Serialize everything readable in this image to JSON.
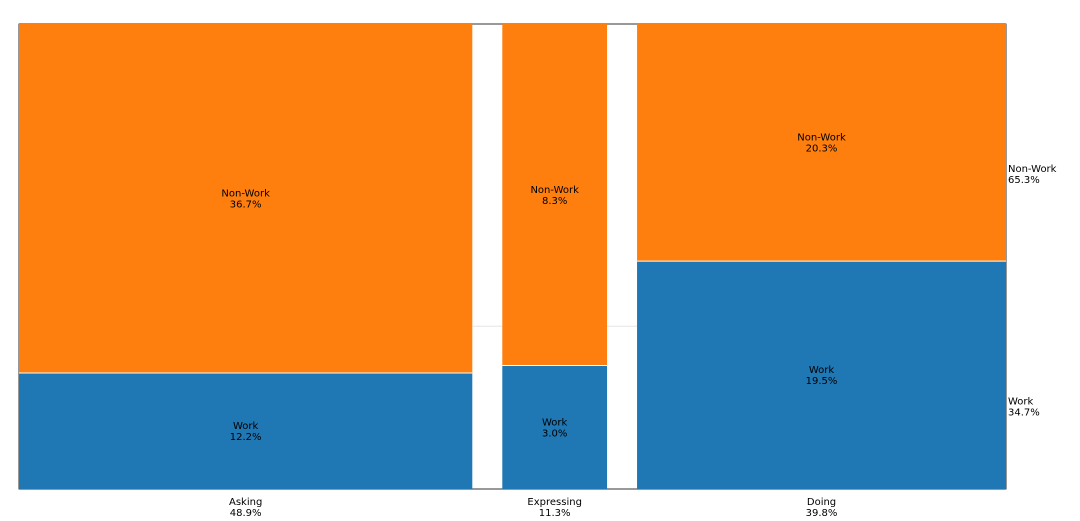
{
  "chart_data": {
    "type": "mosaic",
    "categories": [
      {
        "name": "Asking",
        "total_label": "48.9%",
        "share": 48.9,
        "segments": [
          {
            "name": "Work",
            "label": "12.2%",
            "value": 12.2
          },
          {
            "name": "Non-Work",
            "label": "36.7%",
            "value": 36.7
          }
        ]
      },
      {
        "name": "Expressing",
        "total_label": "11.3%",
        "share": 11.3,
        "segments": [
          {
            "name": "Work",
            "label": "3.0%",
            "value": 3.0
          },
          {
            "name": "Non-Work",
            "label": "8.3%",
            "value": 8.3
          }
        ]
      },
      {
        "name": "Doing",
        "total_label": "39.8%",
        "share": 39.8,
        "segments": [
          {
            "name": "Work",
            "label": "19.5%",
            "value": 19.5
          },
          {
            "name": "Non-Work",
            "label": "20.3%",
            "value": 20.3
          }
        ]
      }
    ],
    "row_totals": [
      {
        "name": "Work",
        "label": "34.7%",
        "value": 34.7
      },
      {
        "name": "Non-Work",
        "label": "65.3%",
        "value": 65.3
      }
    ],
    "colors": {
      "Work": "#1f77b4",
      "Non-Work": "#ff7f0e"
    },
    "title": "",
    "xlabel": "",
    "ylabel": "",
    "grid": false,
    "legend": "none"
  }
}
